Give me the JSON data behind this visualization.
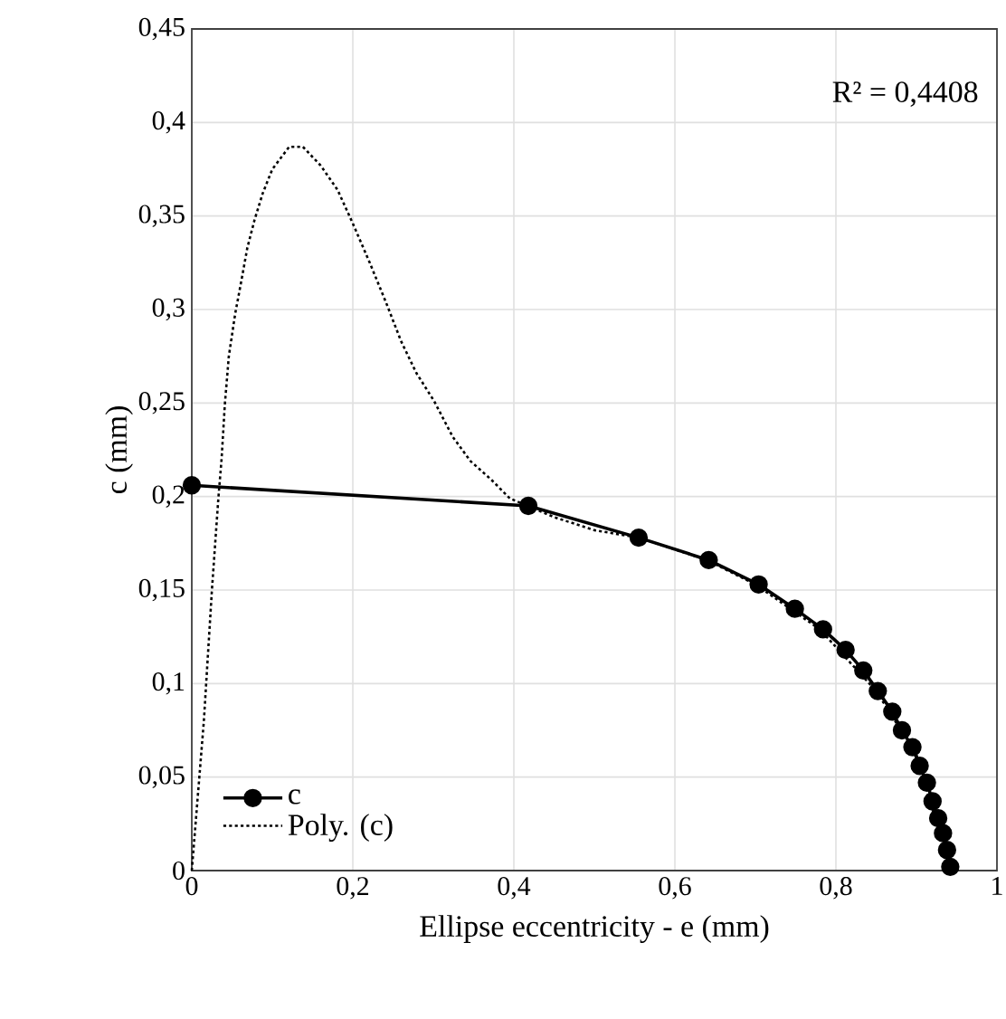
{
  "chart_data": {
    "type": "line",
    "xlabel": "Ellipse eccentricity  - e (mm)",
    "ylabel": "c (mm)",
    "annotations": [
      "R² = 0,4408"
    ],
    "xlim": [
      0,
      1
    ],
    "ylim": [
      0,
      0.45
    ],
    "xticks": [
      0,
      {
        "value": 0.2,
        "label": "0,2"
      },
      {
        "value": 0.4,
        "label": "0,4"
      },
      {
        "value": 0.6,
        "label": "0,6"
      },
      {
        "value": 0.8,
        "label": "0,8"
      },
      1
    ],
    "yticks": [
      0,
      {
        "value": 0.05,
        "label": "0,05"
      },
      {
        "value": 0.1,
        "label": "0,1"
      },
      {
        "value": 0.15,
        "label": "0,15"
      },
      {
        "value": 0.2,
        "label": "0,2"
      },
      {
        "value": 0.25,
        "label": "0,25"
      },
      {
        "value": 0.3,
        "label": "0,3"
      },
      {
        "value": 0.35,
        "label": "0,35"
      },
      {
        "value": 0.4,
        "label": "0,4"
      },
      {
        "value": 0.45,
        "label": "0,45"
      }
    ],
    "grid": true,
    "legend": "bottom left",
    "series": [
      {
        "name": "c",
        "color": "#000000",
        "marker": "circle",
        "line_style": "solid",
        "x": [
          0,
          0.418,
          0.555,
          0.642,
          0.704,
          0.749,
          0.784,
          0.812,
          0.834,
          0.852,
          0.87,
          0.882,
          0.895,
          0.904,
          0.913,
          0.92,
          0.927,
          0.933,
          0.938,
          0.942
        ],
        "values": [
          0.206,
          0.195,
          0.178,
          0.166,
          0.153,
          0.14,
          0.129,
          0.118,
          0.107,
          0.096,
          0.085,
          0.075,
          0.066,
          0.056,
          0.047,
          0.037,
          0.028,
          0.02,
          0.011,
          0.002
        ]
      },
      {
        "name": "Poly. (c)",
        "color": "#000000",
        "marker": "none",
        "line_style": "dotted",
        "x": [
          0,
          0.015,
          0.025,
          0.033,
          0.037,
          0.041,
          0.046,
          0.054,
          0.061,
          0.069,
          0.078,
          0.088,
          0.1,
          0.121,
          0.138,
          0.16,
          0.181,
          0.2,
          0.221,
          0.241,
          0.26,
          0.279,
          0.301,
          0.324,
          0.346,
          0.372,
          0.395,
          0.45,
          0.5,
          0.555,
          0.64,
          0.7,
          0.78,
          0.85,
          0.9,
          0.94
        ],
        "values": [
          0,
          0.08,
          0.15,
          0.199,
          0.22,
          0.249,
          0.275,
          0.298,
          0.314,
          0.333,
          0.348,
          0.362,
          0.375,
          0.387,
          0.387,
          0.377,
          0.364,
          0.346,
          0.325,
          0.304,
          0.283,
          0.266,
          0.251,
          0.232,
          0.219,
          0.209,
          0.199,
          0.189,
          0.182,
          0.178,
          0.166,
          0.153,
          0.129,
          0.096,
          0.062,
          0.003
        ]
      }
    ]
  }
}
